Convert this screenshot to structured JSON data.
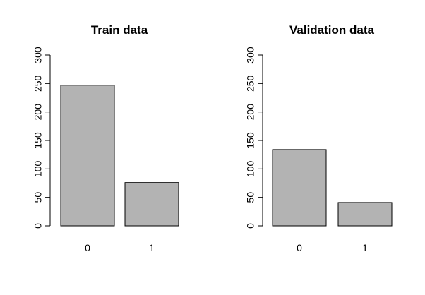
{
  "chart_data": [
    {
      "type": "bar",
      "title": "Train data",
      "categories": [
        "0",
        "1"
      ],
      "values": [
        247,
        76
      ],
      "ylim": [
        0,
        300
      ],
      "yticks": [
        "0",
        "50",
        "100",
        "150",
        "200",
        "250",
        "300"
      ],
      "xlabel": "",
      "ylabel": "",
      "grid": false,
      "bar_color": "#b3b3b3"
    },
    {
      "type": "bar",
      "title": "Validation data",
      "categories": [
        "0",
        "1"
      ],
      "values": [
        134,
        41
      ],
      "ylim": [
        0,
        300
      ],
      "yticks": [
        "0",
        "50",
        "100",
        "150",
        "200",
        "250",
        "300"
      ],
      "xlabel": "",
      "ylabel": "",
      "grid": false,
      "bar_color": "#b3b3b3"
    }
  ]
}
